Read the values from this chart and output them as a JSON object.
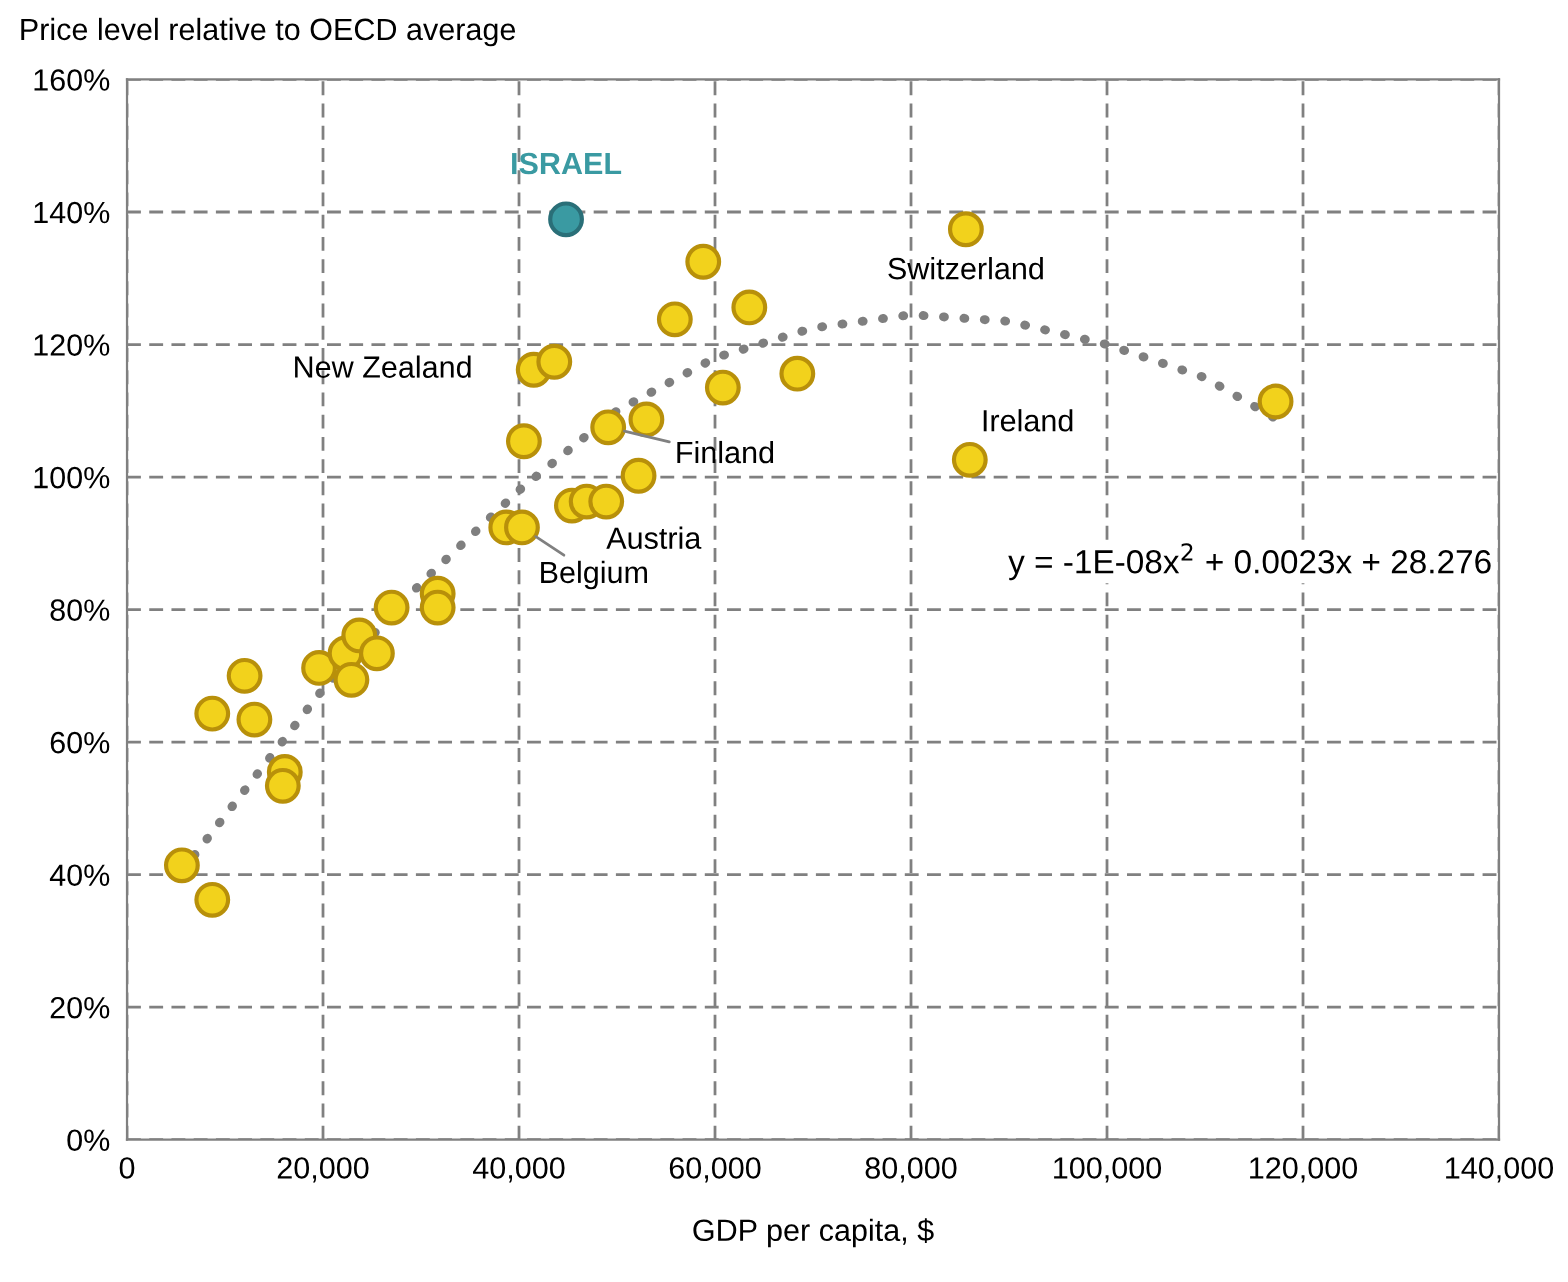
{
  "chart_data": {
    "type": "scatter",
    "ylabel": "Price level relative to OECD average",
    "xlabel": "GDP per capita, $",
    "xlim": [
      0,
      140000
    ],
    "xticks": [
      {
        "value": 0,
        "label": "0"
      },
      {
        "value": 20000,
        "label": "20,000"
      },
      {
        "value": 40000,
        "label": "40,000"
      },
      {
        "value": 60000,
        "label": "60,000"
      },
      {
        "value": 80000,
        "label": "80,000"
      },
      {
        "value": 100000,
        "label": "100,000"
      },
      {
        "value": 120000,
        "label": "120,000"
      },
      {
        "value": 140000,
        "label": "140,000"
      }
    ],
    "ylim": [
      0,
      160
    ],
    "yticks": [
      {
        "value": 0,
        "label": "0%"
      },
      {
        "value": 20,
        "label": "20%"
      },
      {
        "value": 40,
        "label": "40%"
      },
      {
        "value": 60,
        "label": "60%"
      },
      {
        "value": 80,
        "label": "80%"
      },
      {
        "value": 100,
        "label": "100%"
      },
      {
        "value": 120,
        "label": "120%"
      },
      {
        "value": 140,
        "label": "140%"
      },
      {
        "value": 160,
        "label": "160%"
      }
    ],
    "grid": true,
    "legend": false,
    "marker": "circle",
    "series": [
      {
        "type": "line",
        "color": "#7f7f7f",
        "line_style": "dotted",
        "marker": "none",
        "x": [
          5600,
          20000,
          30000,
          40000,
          50000,
          60000,
          70000,
          80000,
          90000,
          100000,
          110000,
          117000
        ],
        "values": [
          40.5,
          68,
          84,
          98,
          110,
          118,
          122.5,
          124.5,
          123.5,
          120,
          115,
          109
        ]
      },
      {
        "color": "#f2d21c",
        "x": [
          5600,
          8700,
          8700,
          13000,
          16100,
          15900,
          12000,
          19600,
          22300,
          23700,
          22900,
          25500,
          27000,
          31700,
          31700,
          38700,
          40300,
          40500,
          41500,
          43600,
          49100,
          53000,
          52200,
          45400,
          46900,
          48900,
          55900,
          58800,
          60800,
          63500,
          68400,
          85600,
          86000,
          117200
        ],
        "values": [
          41.4,
          36.2,
          64.3,
          63.4,
          55.5,
          53.4,
          70,
          71.2,
          73.4,
          76.1,
          69.4,
          73.4,
          80.3,
          82.4,
          80.3,
          92.4,
          92.4,
          105.4,
          116.2,
          117.4,
          107.5,
          108.7,
          100.2,
          95.7,
          96.3,
          96.3,
          123.8,
          132.5,
          113.5,
          125.6,
          115.6,
          137.4,
          102.6,
          111.4
        ]
      },
      {
        "name": "ISRAEL",
        "color": "#3a9aa2",
        "x": [
          44800
        ],
        "values": [
          138.9
        ]
      }
    ],
    "annotations": [
      {
        "text": "New Zealand",
        "x": 41500,
        "y": 116.2
      },
      {
        "text": "Finland",
        "x": 49100,
        "y": 107.5
      },
      {
        "text": "Austria",
        "x": 48900,
        "y": 96.3
      },
      {
        "text": "Belgium",
        "x": 40300,
        "y": 92.4
      },
      {
        "text": "Switzerland",
        "x": 85600,
        "y": 137.4
      },
      {
        "text": "Ireland",
        "x": 86000,
        "y": 102.6
      },
      "y = -1E-08x$^{2}$ + 0.0023x + 28.276"
    ]
  }
}
